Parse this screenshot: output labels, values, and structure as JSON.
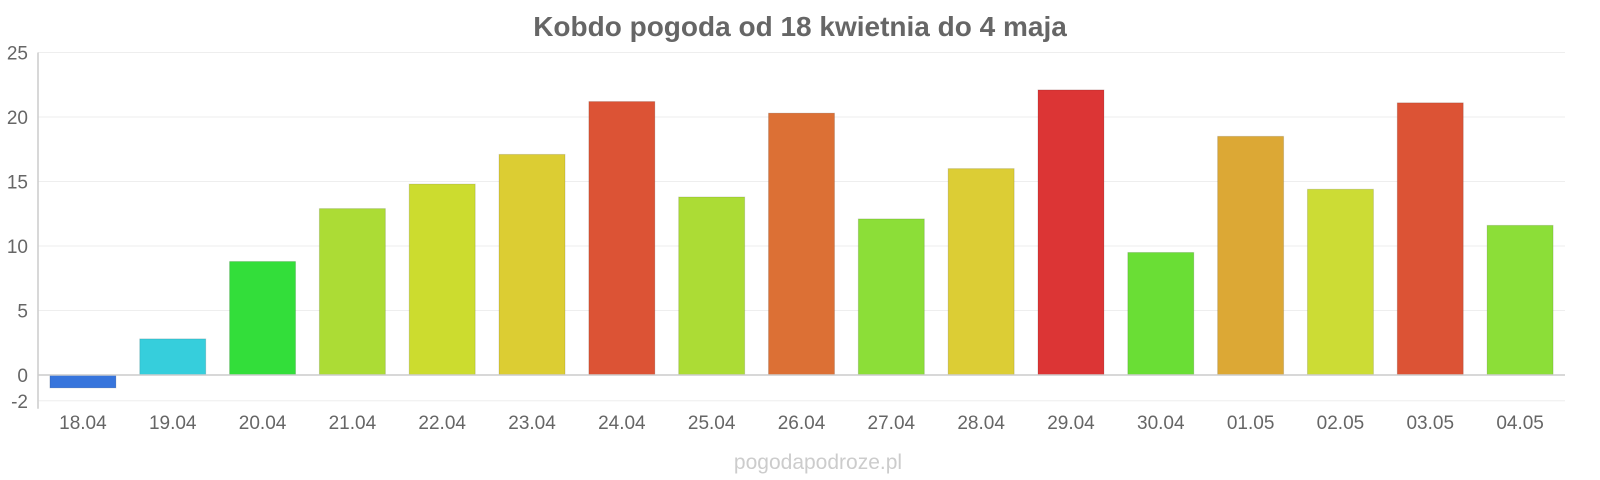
{
  "chart_data": {
    "type": "bar",
    "title": "Kobdo pogoda od 18 kwietnia do 4 maja",
    "xlabel": "",
    "ylabel": "",
    "categories": [
      "18.04",
      "19.04",
      "20.04",
      "21.04",
      "22.04",
      "23.04",
      "24.04",
      "25.04",
      "26.04",
      "27.04",
      "28.04",
      "29.04",
      "30.04",
      "01.05",
      "02.05",
      "03.05",
      "04.05"
    ],
    "values": [
      -1,
      2.8,
      8.8,
      12.9,
      14.8,
      17.1,
      21.2,
      13.8,
      20.3,
      12.1,
      16.0,
      22.1,
      9.5,
      18.5,
      14.4,
      21.1,
      11.6
    ],
    "colors": [
      "#3775dc",
      "#36cedc",
      "#33de3a",
      "#acdc35",
      "#ccdc2f",
      "#dccd33",
      "#dc5335",
      "#acdc35",
      "#dc7035",
      "#8cde38",
      "#dccd35",
      "#dc3535",
      "#6ade35",
      "#dca835",
      "#ccdc35",
      "#dc5335",
      "#8cde38"
    ],
    "ylim": [
      -2,
      25
    ],
    "yticks": [
      -2,
      0,
      5,
      10,
      15,
      20,
      25
    ],
    "grid": true,
    "legend": "none"
  },
  "credit": "pogodapodroze.pl"
}
